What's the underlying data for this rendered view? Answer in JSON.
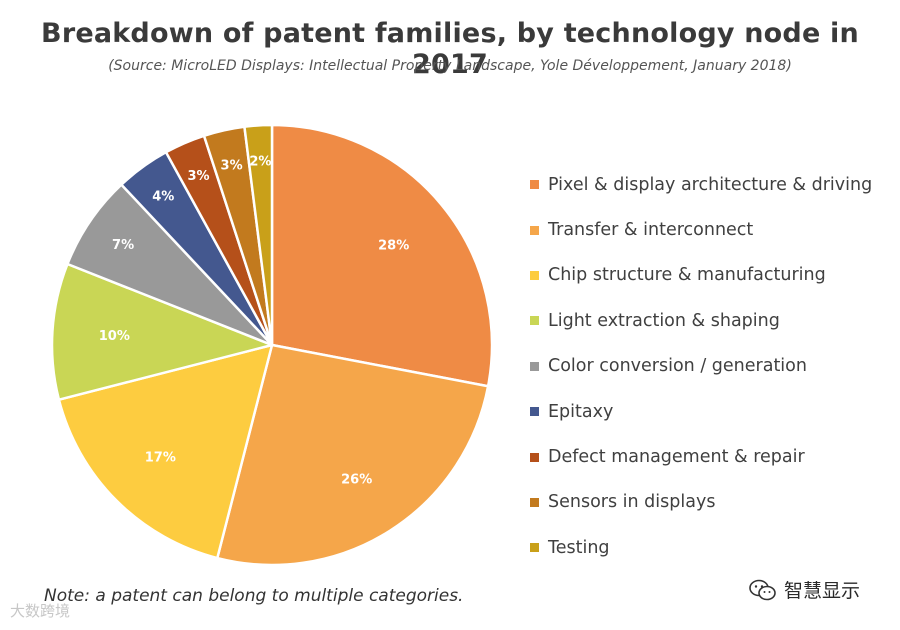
{
  "header": {
    "title": "Breakdown of patent families, by technology node in 2017",
    "subtitle": "(Source: MicroLED Displays: Intellectual Property Landscape, Yole Développement, January 2018)"
  },
  "chart_data": {
    "type": "pie",
    "title": "Breakdown of patent families, by technology node in 2017",
    "categories": [
      "Pixel & display architecture & driving",
      "Transfer & interconnect",
      "Chip structure & manufacturing",
      "Light extraction & shaping",
      "Color conversion / generation",
      "Epitaxy",
      "Defect management & repair",
      "Sensors in displays",
      "Testing"
    ],
    "values": [
      28,
      26,
      17,
      10,
      7,
      4,
      3,
      3,
      2
    ],
    "labels": [
      "28%",
      "26%",
      "17%",
      "10%",
      "7%",
      "4%",
      "3%",
      "3%",
      "2%"
    ],
    "colors": [
      "#EF8B45",
      "#F5A64A",
      "#FDCC40",
      "#C9D655",
      "#999999",
      "#44588F",
      "#B5501A",
      "#C27A1E",
      "#C9A019"
    ],
    "legend_position": "right",
    "start_angle_deg": 0,
    "direction": "clockwise"
  },
  "footer": {
    "note": "Note: a patent can belong to multiple categories.",
    "watermark_left": "大数跨境",
    "watermark_right": "智慧显示",
    "watermark_icon": "wechat-icon"
  }
}
